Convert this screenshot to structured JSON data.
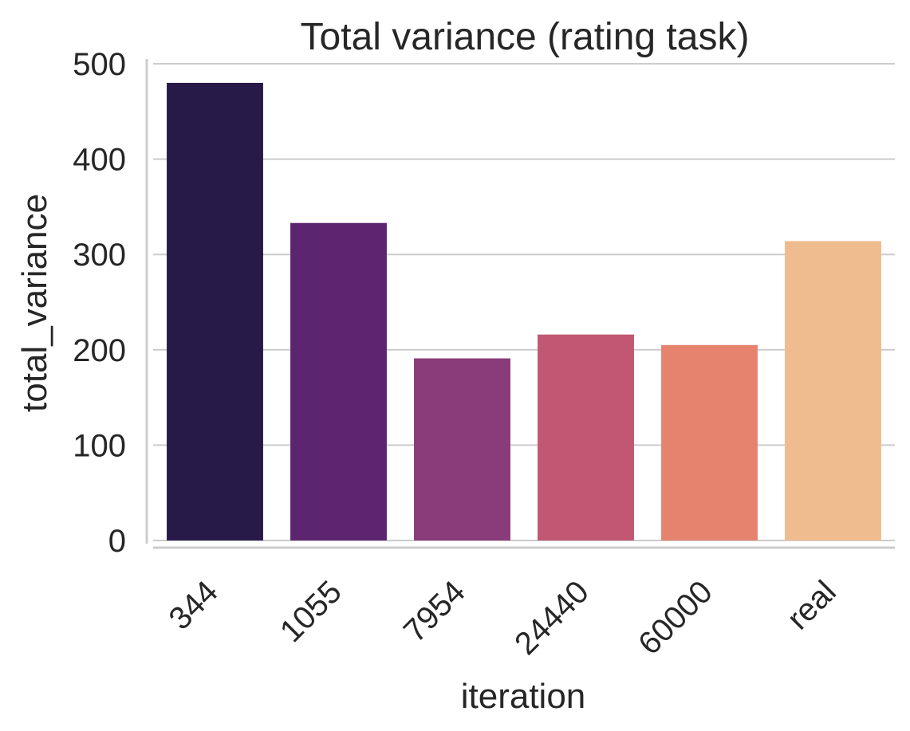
{
  "chart_data": {
    "type": "bar",
    "title": "Total variance (rating task)",
    "xlabel": "iteration",
    "ylabel": "total_variance",
    "categories": [
      "344",
      "1055",
      "7954",
      "24440",
      "60000",
      "real"
    ],
    "values": [
      480,
      333,
      191,
      216,
      205,
      314
    ],
    "colors": [
      "#271a48",
      "#5d256f",
      "#8a3b79",
      "#c15772",
      "#e6836f",
      "#efbc8f"
    ],
    "yticks": [
      "0",
      "100",
      "200",
      "300",
      "400",
      "500"
    ],
    "ylim": [
      0,
      500
    ],
    "grid": "horizontal",
    "legend": "none"
  }
}
